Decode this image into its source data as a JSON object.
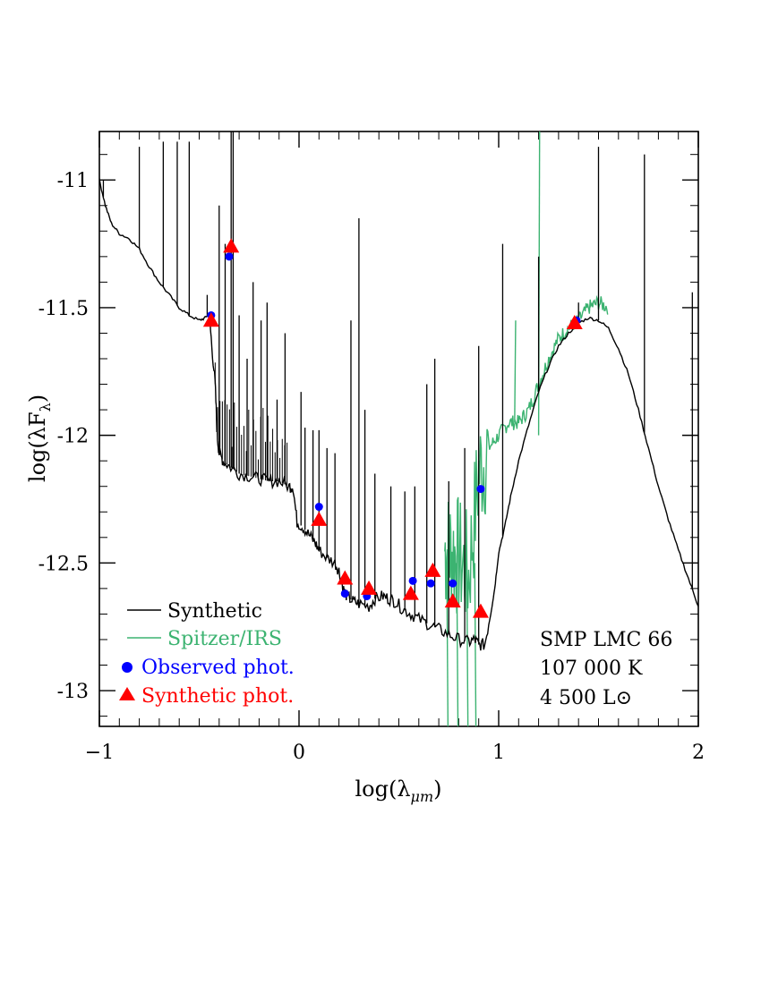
{
  "chart_data": {
    "type": "line",
    "title": "",
    "xlabel": "log(λμm)",
    "ylabel": "log(λFλ)",
    "xlim": [
      -1,
      2
    ],
    "ylim": [
      -13.14,
      -10.81
    ],
    "x_ticks": [
      -1,
      0,
      1,
      2
    ],
    "x_tick_labels": [
      "−1",
      "0",
      "1",
      "2"
    ],
    "y_ticks": [
      -13,
      -12.5,
      -12,
      -11.5,
      -11
    ],
    "y_tick_labels": [
      "-13",
      "-12.5",
      "-12",
      "-11.5",
      "-11"
    ],
    "annotation": {
      "object": "SMP LMC 66",
      "temperature": "107 000 K",
      "luminosity": "4 500 L⊙"
    },
    "legend": {
      "placement": "bottom-left",
      "entries": [
        "Synthetic",
        "Spitzer/IRS",
        "Observed phot.",
        "Synthetic phot."
      ]
    },
    "series": [
      {
        "name": "Synthetic",
        "kind": "line",
        "color": "#000000",
        "continuum": [
          [
            -1.0,
            -11.0
          ],
          [
            -0.97,
            -11.1
          ],
          [
            -0.94,
            -11.17
          ],
          [
            -0.9,
            -11.21
          ],
          [
            -0.85,
            -11.23
          ],
          [
            -0.8,
            -11.27
          ],
          [
            -0.75,
            -11.34
          ],
          [
            -0.7,
            -11.4
          ],
          [
            -0.65,
            -11.45
          ],
          [
            -0.6,
            -11.5
          ],
          [
            -0.55,
            -11.53
          ],
          [
            -0.5,
            -11.55
          ],
          [
            -0.47,
            -11.54
          ],
          [
            -0.45,
            -11.52
          ],
          [
            -0.44,
            -11.62
          ],
          [
            -0.42,
            -11.8
          ],
          [
            -0.41,
            -12.0
          ],
          [
            -0.4,
            -12.07
          ],
          [
            -0.38,
            -12.1
          ],
          [
            -0.35,
            -12.12
          ],
          [
            -0.3,
            -12.15
          ],
          [
            -0.25,
            -12.16
          ],
          [
            -0.2,
            -12.17
          ],
          [
            -0.15,
            -12.18
          ],
          [
            -0.1,
            -12.18
          ],
          [
            -0.05,
            -12.2
          ],
          [
            -0.03,
            -12.2
          ],
          [
            -0.01,
            -12.34
          ],
          [
            0.02,
            -12.36
          ],
          [
            0.05,
            -12.39
          ],
          [
            0.08,
            -12.42
          ],
          [
            0.1,
            -12.45
          ],
          [
            0.14,
            -12.48
          ],
          [
            0.18,
            -12.5
          ],
          [
            0.2,
            -12.53
          ],
          [
            0.22,
            -12.6
          ],
          [
            0.24,
            -12.63
          ],
          [
            0.27,
            -12.65
          ],
          [
            0.3,
            -12.66
          ],
          [
            0.35,
            -12.67
          ],
          [
            0.38,
            -12.64
          ],
          [
            0.42,
            -12.63
          ],
          [
            0.45,
            -12.64
          ],
          [
            0.48,
            -12.65
          ],
          [
            0.52,
            -12.68
          ],
          [
            0.56,
            -12.7
          ],
          [
            0.6,
            -12.72
          ],
          [
            0.65,
            -12.74
          ],
          [
            0.7,
            -12.76
          ],
          [
            0.75,
            -12.78
          ],
          [
            0.8,
            -12.8
          ],
          [
            0.85,
            -12.81
          ],
          [
            0.88,
            -12.8
          ],
          [
            0.9,
            -12.82
          ],
          [
            0.93,
            -12.82
          ],
          [
            0.96,
            -12.7
          ],
          [
            0.98,
            -12.6
          ],
          [
            1.0,
            -12.46
          ],
          [
            1.03,
            -12.36
          ],
          [
            1.06,
            -12.24
          ],
          [
            1.1,
            -12.1
          ],
          [
            1.15,
            -11.96
          ],
          [
            1.2,
            -11.83
          ],
          [
            1.25,
            -11.73
          ],
          [
            1.3,
            -11.65
          ],
          [
            1.35,
            -11.6
          ],
          [
            1.4,
            -11.56
          ],
          [
            1.45,
            -11.54
          ],
          [
            1.5,
            -11.55
          ],
          [
            1.55,
            -11.58
          ],
          [
            1.6,
            -11.66
          ],
          [
            1.65,
            -11.76
          ],
          [
            1.7,
            -11.9
          ],
          [
            1.75,
            -12.05
          ],
          [
            1.8,
            -12.2
          ],
          [
            1.85,
            -12.33
          ],
          [
            1.9,
            -12.45
          ],
          [
            1.95,
            -12.56
          ],
          [
            2.0,
            -12.67
          ]
        ],
        "lines": [
          [
            -0.98,
            -11.0
          ],
          [
            -0.8,
            -10.87
          ],
          [
            -0.68,
            -10.85
          ],
          [
            -0.61,
            -10.85
          ],
          [
            -0.55,
            -10.85
          ],
          [
            -0.46,
            -11.45
          ],
          [
            -0.4,
            -11.1
          ],
          [
            -0.37,
            -11.25
          ],
          [
            -0.34,
            -10.81
          ],
          [
            -0.33,
            -10.81
          ],
          [
            -0.3,
            -11.53
          ],
          [
            -0.26,
            -11.7
          ],
          [
            -0.23,
            -11.4
          ],
          [
            -0.19,
            -11.55
          ],
          [
            -0.16,
            -11.48
          ],
          [
            -0.11,
            -11.86
          ],
          [
            -0.07,
            -11.6
          ],
          [
            0.01,
            -11.83
          ],
          [
            0.03,
            -11.97
          ],
          [
            0.07,
            -11.98
          ],
          [
            0.1,
            -11.98
          ],
          [
            0.14,
            -12.05
          ],
          [
            0.18,
            -12.07
          ],
          [
            0.26,
            -11.55
          ],
          [
            0.3,
            -11.15
          ],
          [
            0.33,
            -11.9
          ],
          [
            0.38,
            -12.15
          ],
          [
            0.46,
            -12.2
          ],
          [
            0.53,
            -12.22
          ],
          [
            0.58,
            -12.2
          ],
          [
            0.64,
            -11.8
          ],
          [
            0.68,
            -11.7
          ],
          [
            0.75,
            -12.18
          ],
          [
            0.83,
            -12.05
          ],
          [
            0.9,
            -11.65
          ],
          [
            1.02,
            -11.25
          ],
          [
            1.2,
            -11.3
          ],
          [
            1.4,
            -11.48
          ],
          [
            1.5,
            -10.87
          ],
          [
            1.73,
            -10.9
          ],
          [
            1.97,
            -11.44
          ]
        ]
      },
      {
        "name": "Spitzer/IRS",
        "kind": "line",
        "color": "#3cb371",
        "x": [
          0.73,
          0.76,
          0.8,
          0.85,
          0.9,
          0.95,
          1.0,
          1.05,
          1.1,
          1.15,
          1.2,
          1.25,
          1.3,
          1.35,
          1.4,
          1.45,
          1.5,
          1.55
        ],
        "y": [
          -12.45,
          -12.45,
          -12.48,
          -12.55,
          -12.15,
          -12.05,
          -12.0,
          -11.95,
          -11.95,
          -11.9,
          -11.8,
          -11.7,
          -11.62,
          -11.58,
          -11.55,
          -11.5,
          -11.48,
          -11.5
        ]
      },
      {
        "name": "Observed phot.",
        "kind": "scatter",
        "marker": "circle",
        "color": "#0000ff",
        "x": [
          -0.44,
          -0.35,
          0.1,
          0.23,
          0.34,
          0.57,
          0.66,
          0.77,
          0.91,
          1.39
        ],
        "y": [
          -11.53,
          -11.3,
          -12.28,
          -12.62,
          -12.63,
          -12.57,
          -12.58,
          -12.58,
          -12.21,
          -11.55
        ]
      },
      {
        "name": "Synthetic phot.",
        "kind": "scatter",
        "marker": "triangle",
        "color": "#ff0000",
        "x": [
          -0.44,
          -0.34,
          0.1,
          0.23,
          0.35,
          0.56,
          0.67,
          0.77,
          0.91,
          1.38
        ],
        "y": [
          -11.55,
          -11.26,
          -12.33,
          -12.56,
          -12.6,
          -12.62,
          -12.53,
          -12.65,
          -12.69,
          -11.56
        ]
      }
    ]
  }
}
